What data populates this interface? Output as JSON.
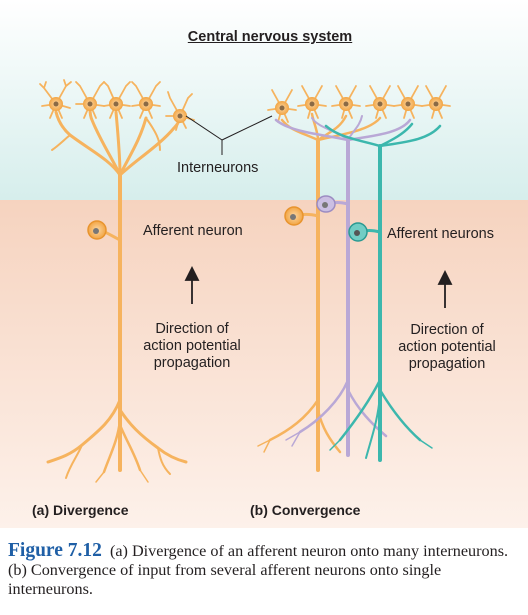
{
  "regions": {
    "top_label": "Central nervous system",
    "cns_color": "#dff1ef",
    "pns_color": "#f7d9c7"
  },
  "labels": {
    "interneurons": "Interneurons",
    "afferent_neuron": "Afferent neuron",
    "afferent_neurons": "Afferent neurons",
    "direction_a": [
      "Direction of",
      "action potential",
      "propagation"
    ],
    "direction_b": [
      "Direction of",
      "action potential",
      "propagation"
    ]
  },
  "panels": {
    "a": "(a) Divergence",
    "b": "(b) Convergence"
  },
  "colors": {
    "neuron_orange": "#f6b35e",
    "neuron_purple": "#b9a8d6",
    "neuron_teal": "#3cb7ad",
    "caption_blue": "#1f5fa6"
  },
  "caption": {
    "label": "Figure 7.12",
    "text": "(a) Divergence of an afferent neuron onto many interneurons. (b) Convergence of input from several afferent neurons onto single interneurons."
  }
}
